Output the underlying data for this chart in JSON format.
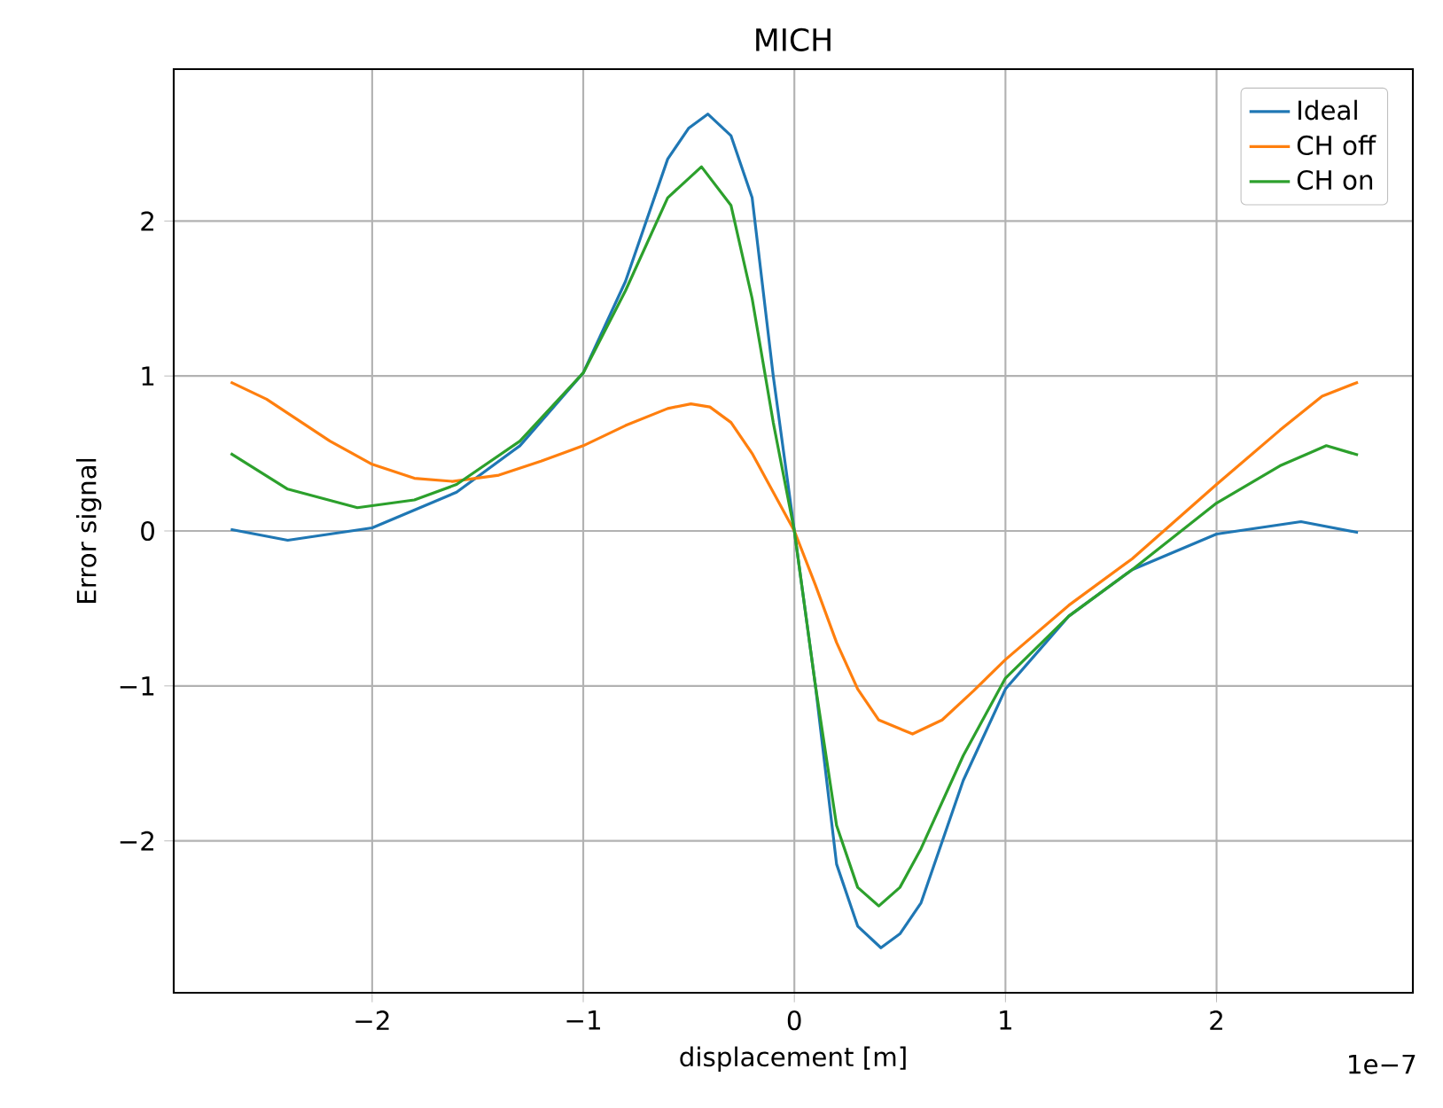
{
  "chart_data": {
    "type": "line",
    "title": "MICH",
    "xlabel": "displacement [m]",
    "ylabel": "Error signal",
    "annotations": [
      "1e−7"
    ],
    "xlim": [
      -2.94,
      2.93
    ],
    "ylim": [
      -2.98,
      2.98
    ],
    "xticks": [
      {
        "value": -2,
        "label": "−2"
      },
      {
        "value": -1,
        "label": "−1"
      },
      0,
      1,
      2
    ],
    "yticks": [
      {
        "value": -2,
        "label": "−2"
      },
      {
        "value": -1,
        "label": "−1"
      },
      0,
      1,
      2
    ],
    "grid": true,
    "legend": "top right",
    "line_style": "solid",
    "marker": "none",
    "series": [
      {
        "name": "Ideal",
        "color": "#1f77b4",
        "x": [
          -2.67,
          -2.4,
          -2.0,
          -1.6,
          -1.3,
          -1.0,
          -0.8,
          -0.6,
          -0.5,
          -0.41,
          -0.3,
          -0.2,
          -0.1,
          -0.05,
          0,
          0.05,
          0.1,
          0.2,
          0.3,
          0.41,
          0.5,
          0.6,
          0.8,
          1.0,
          1.3,
          1.6,
          2.0,
          2.4,
          2.67
        ],
        "values": [
          0.01,
          -0.06,
          0.02,
          0.25,
          0.55,
          1.02,
          1.61,
          2.4,
          2.6,
          2.69,
          2.55,
          2.15,
          1.0,
          0.5,
          0,
          -0.5,
          -1.0,
          -2.15,
          -2.55,
          -2.69,
          -2.6,
          -2.4,
          -1.61,
          -1.02,
          -0.55,
          -0.25,
          -0.02,
          0.06,
          -0.01
        ]
      },
      {
        "name": "CH off",
        "color": "#ff7f0e",
        "x": [
          -2.67,
          -2.5,
          -2.2,
          -2.0,
          -1.8,
          -1.62,
          -1.4,
          -1.2,
          -1.0,
          -0.8,
          -0.6,
          -0.49,
          -0.4,
          -0.3,
          -0.2,
          -0.1,
          0,
          0.1,
          0.2,
          0.3,
          0.4,
          0.56,
          0.7,
          0.85,
          1.0,
          1.3,
          1.6,
          2.0,
          2.3,
          2.5,
          2.67
        ],
        "values": [
          0.96,
          0.85,
          0.58,
          0.43,
          0.34,
          0.32,
          0.36,
          0.45,
          0.55,
          0.68,
          0.79,
          0.82,
          0.8,
          0.7,
          0.5,
          0.25,
          0,
          -0.35,
          -0.72,
          -1.02,
          -1.22,
          -1.31,
          -1.22,
          -1.03,
          -0.83,
          -0.48,
          -0.18,
          0.3,
          0.65,
          0.87,
          0.96
        ]
      },
      {
        "name": "CH on",
        "color": "#2ca02c",
        "x": [
          -2.67,
          -2.4,
          -2.07,
          -1.8,
          -1.6,
          -1.3,
          -1.0,
          -0.8,
          -0.6,
          -0.44,
          -0.3,
          -0.2,
          -0.1,
          -0.05,
          0,
          0.05,
          0.1,
          0.2,
          0.3,
          0.4,
          0.5,
          0.6,
          0.8,
          1.0,
          1.3,
          1.6,
          2.0,
          2.3,
          2.52,
          2.67
        ],
        "values": [
          0.5,
          0.27,
          0.15,
          0.2,
          0.3,
          0.58,
          1.02,
          1.55,
          2.15,
          2.35,
          2.1,
          1.5,
          0.7,
          0.35,
          0,
          -0.5,
          -1.0,
          -1.9,
          -2.3,
          -2.42,
          -2.3,
          -2.05,
          -1.45,
          -0.95,
          -0.55,
          -0.25,
          0.18,
          0.42,
          0.55,
          0.49
        ]
      }
    ]
  }
}
